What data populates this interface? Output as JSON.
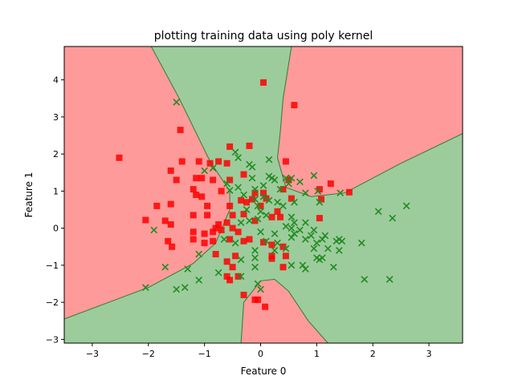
{
  "chart_data": {
    "type": "scatter",
    "title": "plotting training data using poly kernel",
    "xlabel": "Feature 0",
    "ylabel": "Feature 1",
    "xlim": [
      -3.5,
      3.6
    ],
    "ylim": [
      -3.1,
      4.9
    ],
    "xticks": [
      -3,
      -2,
      -1,
      0,
      1,
      2,
      3
    ],
    "yticks": [
      -3,
      -2,
      -1,
      0,
      1,
      2,
      3,
      4
    ],
    "grid": false,
    "background_regions": {
      "red_color": "#ff9a9a",
      "green_color": "#9ccc9c",
      "boundary_color": "#2e7d32"
    },
    "series": [
      {
        "marker": "square",
        "color": "#ff0000",
        "points": [
          [
            0.05,
            3.93
          ],
          [
            0.6,
            3.32
          ],
          [
            -1.43,
            2.65
          ],
          [
            -2.52,
            1.9
          ],
          [
            -0.55,
            2.2
          ],
          [
            -0.2,
            2.22
          ],
          [
            -1.4,
            1.8
          ],
          [
            -1.1,
            1.8
          ],
          [
            -0.9,
            1.75
          ],
          [
            -0.75,
            1.8
          ],
          [
            -0.6,
            1.75
          ],
          [
            0.45,
            1.8
          ],
          [
            -1.6,
            1.55
          ],
          [
            -1.15,
            1.35
          ],
          [
            -1.05,
            1.35
          ],
          [
            -0.85,
            1.3
          ],
          [
            -0.55,
            1.3
          ],
          [
            -1.5,
            1.3
          ],
          [
            -0.3,
            1.45
          ],
          [
            0.5,
            1.3
          ],
          [
            1.25,
            1.2
          ],
          [
            1.05,
            1.05
          ],
          [
            1.58,
            0.97
          ],
          [
            -1.2,
            1.05
          ],
          [
            -0.7,
            1.0
          ],
          [
            -0.1,
            0.95
          ],
          [
            0.05,
            0.95
          ],
          [
            0.4,
            1.05
          ],
          [
            -1.15,
            0.9
          ],
          [
            -1.05,
            0.85
          ],
          [
            -0.35,
            0.75
          ],
          [
            -0.25,
            0.7
          ],
          [
            -0.15,
            0.78
          ],
          [
            0.1,
            0.8
          ],
          [
            0.55,
            0.8
          ],
          [
            1.08,
            0.78
          ],
          [
            -1.85,
            0.6
          ],
          [
            -1.6,
            0.65
          ],
          [
            -0.95,
            0.6
          ],
          [
            -0.55,
            0.6
          ],
          [
            0.0,
            0.6
          ],
          [
            -1.2,
            0.35
          ],
          [
            -0.95,
            0.35
          ],
          [
            -0.5,
            0.35
          ],
          [
            -0.3,
            0.38
          ],
          [
            0.2,
            0.3
          ],
          [
            0.3,
            0.45
          ],
          [
            0.35,
            0.3
          ],
          [
            -2.05,
            0.22
          ],
          [
            -1.7,
            0.2
          ],
          [
            -1.6,
            0.1
          ],
          [
            -0.75,
            0.1
          ],
          [
            -0.6,
            0.15
          ],
          [
            -0.1,
            0.2
          ],
          [
            1.05,
            0.27
          ],
          [
            -0.8,
            0.0
          ],
          [
            -0.7,
            -0.05
          ],
          [
            -0.5,
            0.0
          ],
          [
            -1.2,
            -0.1
          ],
          [
            -1.0,
            -0.15
          ],
          [
            -0.85,
            -0.1
          ],
          [
            -0.4,
            -0.1
          ],
          [
            -0.2,
            -0.3
          ],
          [
            0.05,
            -0.38
          ],
          [
            -1.2,
            -0.3
          ],
          [
            -1.0,
            -0.4
          ],
          [
            -0.85,
            -0.35
          ],
          [
            -0.55,
            -0.3
          ],
          [
            -0.3,
            -0.35
          ],
          [
            -1.65,
            -0.35
          ],
          [
            -1.58,
            -0.5
          ],
          [
            0.2,
            -0.45
          ],
          [
            0.4,
            -0.5
          ],
          [
            -0.8,
            -0.7
          ],
          [
            -0.6,
            -0.9
          ],
          [
            -0.45,
            -0.75
          ],
          [
            0.2,
            -0.75
          ],
          [
            0.2,
            -0.82
          ],
          [
            0.45,
            -0.75
          ],
          [
            -0.5,
            -1.05
          ],
          [
            0.4,
            -1.05
          ],
          [
            -0.6,
            -1.3
          ],
          [
            -0.4,
            -1.3
          ],
          [
            -0.55,
            -1.4
          ],
          [
            -0.3,
            -1.8
          ],
          [
            -0.1,
            -1.93
          ],
          [
            -0.05,
            -1.93
          ],
          [
            0.08,
            -2.12
          ]
        ]
      },
      {
        "marker": "x",
        "color": "#228b22",
        "points": [
          [
            -1.5,
            3.4
          ],
          [
            -0.45,
            2.05
          ],
          [
            -0.4,
            1.9
          ],
          [
            0.15,
            1.85
          ],
          [
            -0.2,
            1.72
          ],
          [
            -0.15,
            1.65
          ],
          [
            -1.0,
            1.55
          ],
          [
            -0.85,
            1.62
          ],
          [
            0.15,
            1.4
          ],
          [
            0.2,
            1.35
          ],
          [
            0.45,
            1.35
          ],
          [
            0.55,
            1.35
          ],
          [
            0.95,
            1.42
          ],
          [
            -0.15,
            1.35
          ],
          [
            0.25,
            1.3
          ],
          [
            0.7,
            1.25
          ],
          [
            -0.6,
            1.2
          ],
          [
            0.5,
            1.2
          ],
          [
            0.05,
            1.15
          ],
          [
            -0.4,
            1.1
          ],
          [
            -0.1,
            1.05
          ],
          [
            0.35,
            1.05
          ],
          [
            -0.55,
            1.02
          ],
          [
            1.02,
            1.0
          ],
          [
            1.42,
            0.95
          ],
          [
            -0.3,
            0.9
          ],
          [
            0.8,
            0.95
          ],
          [
            0.05,
            0.85
          ],
          [
            0.15,
            0.75
          ],
          [
            -0.1,
            0.78
          ],
          [
            0.3,
            0.7
          ],
          [
            0.6,
            0.7
          ],
          [
            1.05,
            0.7
          ],
          [
            -0.05,
            0.6
          ],
          [
            0.4,
            0.6
          ],
          [
            2.6,
            0.6
          ],
          [
            -0.25,
            0.5
          ],
          [
            0.0,
            0.45
          ],
          [
            2.1,
            0.45
          ],
          [
            0.1,
            0.35
          ],
          [
            0.55,
            0.3
          ],
          [
            -0.05,
            0.25
          ],
          [
            2.35,
            0.27
          ],
          [
            -0.35,
            0.15
          ],
          [
            -0.2,
            0.2
          ],
          [
            0.6,
            0.15
          ],
          [
            0.8,
            0.15
          ],
          [
            0.45,
            0.05
          ],
          [
            0.55,
            0.0
          ],
          [
            0.7,
            -0.05
          ],
          [
            0.95,
            -0.05
          ],
          [
            0.0,
            -0.1
          ],
          [
            0.25,
            -0.15
          ],
          [
            0.6,
            -0.15
          ],
          [
            0.9,
            -0.2
          ],
          [
            1.15,
            -0.2
          ],
          [
            0.55,
            -0.25
          ],
          [
            0.8,
            -0.3
          ],
          [
            1.1,
            -0.3
          ],
          [
            1.4,
            -0.3
          ],
          [
            1.35,
            -0.35
          ],
          [
            1.45,
            -0.35
          ],
          [
            -0.65,
            -0.3
          ],
          [
            -0.45,
            -0.4
          ],
          [
            0.1,
            -0.35
          ],
          [
            0.3,
            -0.4
          ],
          [
            1.0,
            -0.4
          ],
          [
            -1.9,
            -0.05
          ],
          [
            1.8,
            -0.4
          ],
          [
            0.45,
            -0.55
          ],
          [
            0.95,
            -0.55
          ],
          [
            1.2,
            -0.55
          ],
          [
            -0.1,
            -0.6
          ],
          [
            0.25,
            -0.6
          ],
          [
            1.4,
            -0.6
          ],
          [
            -1.1,
            -0.7
          ],
          [
            -0.1,
            -0.8
          ],
          [
            1.0,
            -0.8
          ],
          [
            1.1,
            -0.8
          ],
          [
            -0.35,
            -0.85
          ],
          [
            1.05,
            -0.85
          ],
          [
            -1.7,
            -1.05
          ],
          [
            -0.1,
            -1.05
          ],
          [
            0.55,
            -1.0
          ],
          [
            0.75,
            -1.0
          ],
          [
            1.3,
            -1.05
          ],
          [
            -1.3,
            -1.1
          ],
          [
            0.8,
            -1.1
          ],
          [
            -0.75,
            -1.2
          ],
          [
            -0.35,
            -1.3
          ],
          [
            -1.1,
            -1.4
          ],
          [
            1.85,
            -1.38
          ],
          [
            2.3,
            -1.38
          ],
          [
            -0.05,
            -1.5
          ],
          [
            -2.05,
            -1.6
          ],
          [
            -1.35,
            -1.6
          ],
          [
            -1.5,
            -1.65
          ],
          [
            0.0,
            -1.65
          ]
        ]
      }
    ]
  }
}
